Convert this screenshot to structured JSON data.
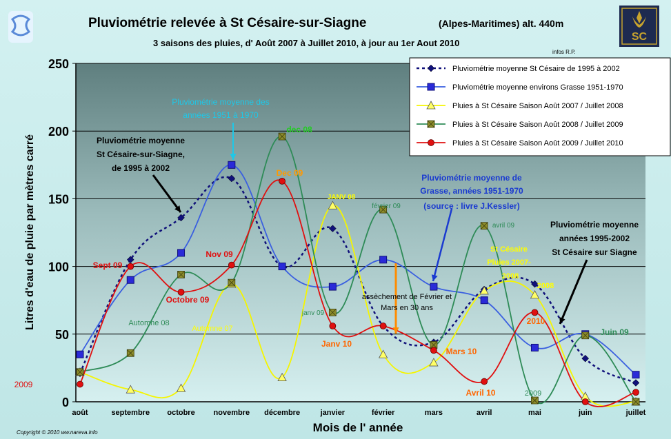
{
  "chart_data": {
    "type": "line",
    "title": "Pluviométrie relevée à St Césaire-sur-Siagne",
    "title_suffix": "(Alpes-Maritimes) alt. 440m",
    "subtitle": "3 saisons des pluies, d' Août 2007 à Juillet 2010,   à jour au 1er Aout 2010",
    "credit": "infos R.P.",
    "copyright": "Copyright © 2010 ww.nareva.info",
    "logo_text": "SC",
    "xlabel": "Mois de l' année",
    "ylabel": "Litres d'eau de pluie par mètres carré",
    "ylim": [
      0,
      250
    ],
    "yticks": [
      "0",
      "50",
      "100",
      "150",
      "200",
      "250"
    ],
    "categories": [
      "août",
      "septembre",
      "octobre",
      "novembre",
      "décembre",
      "janvier",
      "février",
      "mars",
      "avril",
      "mai",
      "juin",
      "juillet"
    ],
    "grid": "horizontal",
    "legend_position": "top-right",
    "series": [
      {
        "name": "Pluviométrie moyenne St Césaire de 1995 à 2002",
        "color": "#10107a",
        "marker": "diamond",
        "dash": true,
        "values": [
          21,
          105,
          136,
          165,
          100,
          128,
          56,
          44,
          83,
          87,
          32,
          14
        ]
      },
      {
        "name": "Pluviométrie  moyenne environs Grasse 1951-1970",
        "color": "#3a5fe0",
        "marker": "square",
        "dash": false,
        "values": [
          35,
          90,
          110,
          175,
          100,
          85,
          105,
          85,
          75,
          40,
          50,
          20
        ]
      },
      {
        "name": "Pluies à St Césaire Saison Août 2007 / Juillet 2008",
        "color": "#f5f500",
        "marker": "triangle",
        "dash": false,
        "values": [
          22,
          9,
          10,
          87,
          18,
          145,
          35,
          29,
          82,
          79,
          4,
          0
        ]
      },
      {
        "name": "Pluies à St Césaire Saison Août 2008 / Juillet 2009",
        "color": "#2e8b57",
        "marker": "xsquare",
        "dash": false,
        "values": [
          22,
          36,
          94,
          88,
          196,
          66,
          142,
          42,
          130,
          1,
          49,
          0
        ]
      },
      {
        "name": "Pluies à St Césaire Saison Août 2009 / Juillet 2010",
        "color": "#e01010",
        "marker": "circle",
        "dash": false,
        "values": [
          13,
          100,
          81,
          101,
          163,
          56,
          56,
          38,
          15,
          66,
          0,
          7
        ]
      }
    ],
    "annotations": [
      {
        "text": "Pluviométrie moyenne des",
        "color": "#1ec8e8"
      },
      {
        "text": "années 1951 à 1970",
        "color": "#1ec8e8"
      },
      {
        "text": "Pluviométrie moyenne",
        "color": "#000000"
      },
      {
        "text": "St Césaire-sur-Siagne,",
        "color": "#000000"
      },
      {
        "text": "de 1995 à 2002",
        "color": "#000000"
      },
      {
        "text": "dec 08",
        "color": "#22cc22"
      },
      {
        "text": "Dec 09",
        "color": "#ff9900"
      },
      {
        "text": "JANV 08",
        "color": "#ffff00"
      },
      {
        "text": "février 09",
        "color": "#2e8b57"
      },
      {
        "text": "Pluviométrie moyenne  de",
        "color": "#1a3ad0"
      },
      {
        "text": "Grasse, années 1951-1970",
        "color": "#1a3ad0"
      },
      {
        "text": "(source : livre J.Kessler)",
        "color": "#1a3ad0"
      },
      {
        "text": "Pluviométrie moyenne",
        "color": "#000000"
      },
      {
        "text": "années 1995-2002",
        "color": "#000000"
      },
      {
        "text": "St Césaire sur Siagne",
        "color": "#000000"
      },
      {
        "text": "Sept 09",
        "color": "#e01010"
      },
      {
        "text": "Nov 09",
        "color": "#e01010"
      },
      {
        "text": "Octobre 09",
        "color": "#e01010"
      },
      {
        "text": "Automne 08",
        "color": "#2e8b57"
      },
      {
        "text": "Automne 07",
        "color": "#ffff00"
      },
      {
        "text": "avril 09",
        "color": "#2e8b57"
      },
      {
        "text": "St Césaire",
        "color": "#ffff00"
      },
      {
        "text": "Pluies 2007-",
        "color": "#ffff00"
      },
      {
        "text": "2008",
        "color": "#ffff00"
      },
      {
        "text": "2008",
        "color": "#ffff00"
      },
      {
        "text": "assèchement de Février et",
        "color": "#000000"
      },
      {
        "text": "Mars en 30 ans",
        "color": "#000000"
      },
      {
        "text": "janv 09",
        "color": "#2e8b57"
      },
      {
        "text": "Janv 10",
        "color": "#ff6600"
      },
      {
        "text": "Mars 10",
        "color": "#ff6600"
      },
      {
        "text": "Avril 10",
        "color": "#ff6600"
      },
      {
        "text": "2010",
        "color": "#ff6600"
      },
      {
        "text": "2009",
        "color": "#2e8b57"
      },
      {
        "text": "Juin 09",
        "color": "#2e8b57"
      },
      {
        "text": "2009",
        "color": "#e01010"
      }
    ]
  }
}
